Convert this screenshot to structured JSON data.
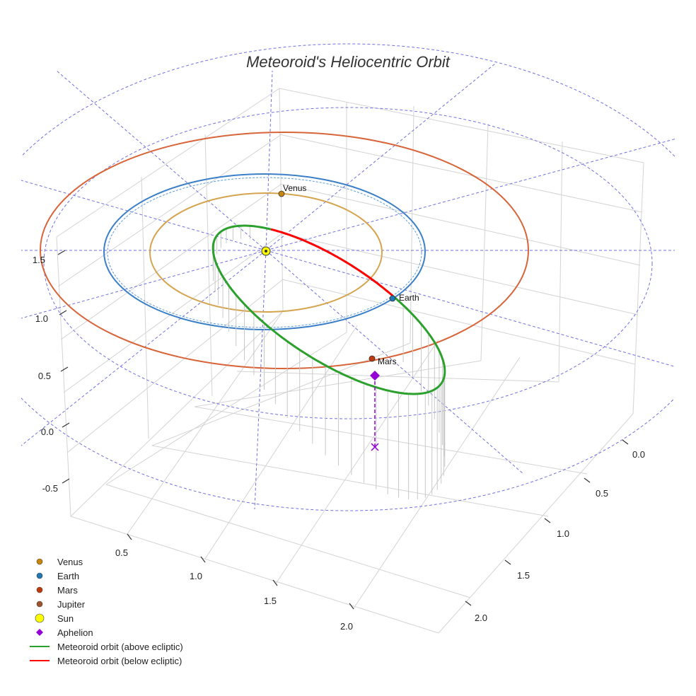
{
  "chart_data": {
    "type": "3d-line",
    "title": "Meteoroid's Heliocentric Orbit",
    "axes": {
      "x_ticks": [
        "0.5",
        "1.0",
        "1.5",
        "2.0"
      ],
      "y_ticks": [
        "0.0",
        "0.5",
        "1.0",
        "1.5",
        "2.0"
      ],
      "z_ticks": [
        "-0.5",
        "0.0",
        "0.5",
        "1.0",
        "1.5"
      ]
    },
    "planets": [
      {
        "name": "Venus",
        "label": "Venus",
        "color": "#c8860b",
        "orbit_color": "#d4a44e",
        "orbit_radius_au": 0.72
      },
      {
        "name": "Earth",
        "label": "Earth",
        "color": "#1f77b4",
        "orbit_color": "#3a7fc8",
        "orbit_radius_au": 1.0
      },
      {
        "name": "Mars",
        "label": "Mars",
        "color": "#c0390b",
        "orbit_color": "#d8643a",
        "orbit_radius_au": 1.52
      },
      {
        "name": "Jupiter",
        "label": "",
        "color": "#a0522d",
        "orbit_color": "#7a7ae8",
        "orbit_radius_au": 5.2
      }
    ],
    "sun": {
      "name": "Sun",
      "color": "#ffff00"
    },
    "meteoroid": {
      "above_label": "Meteoroid orbit (above ecliptic)",
      "below_label": "Meteoroid orbit (below ecliptic)",
      "above_color": "#2ca02c",
      "below_color": "#ff0000"
    },
    "aphelion": {
      "name": "Aphelion",
      "color": "#9400d3"
    },
    "legend": [
      {
        "label": "Venus",
        "marker": "circle",
        "color": "#c8860b"
      },
      {
        "label": "Earth",
        "marker": "circle",
        "color": "#1f77b4"
      },
      {
        "label": "Mars",
        "marker": "circle",
        "color": "#c0390b"
      },
      {
        "label": "Jupiter",
        "marker": "circle",
        "color": "#a0522d"
      },
      {
        "label": "Sun",
        "marker": "big-circle",
        "color": "#ffff00"
      },
      {
        "label": "Aphelion",
        "marker": "diamond",
        "color": "#9400d3"
      },
      {
        "label": "Meteoroid orbit (above ecliptic)",
        "marker": "line",
        "color": "#2ca02c"
      },
      {
        "label": "Meteoroid orbit (below ecliptic)",
        "marker": "line",
        "color": "#ff0000"
      }
    ]
  }
}
